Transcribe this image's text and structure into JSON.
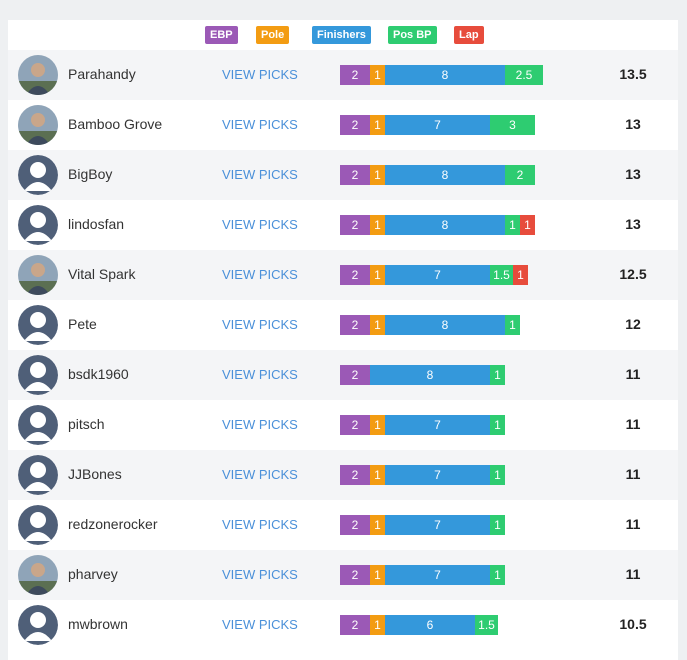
{
  "colors": {
    "ebp": "#9b59b6",
    "pole": "#f39c12",
    "finishers": "#3498db",
    "posbp": "#2ecc71",
    "lap": "#e74c3c",
    "link": "#4a90d9"
  },
  "legend": [
    {
      "key": "ebp",
      "label": "EBP"
    },
    {
      "key": "pole",
      "label": "Pole"
    },
    {
      "key": "finishers",
      "label": "Finishers"
    },
    {
      "key": "posbp",
      "label": "Pos BP"
    },
    {
      "key": "lap",
      "label": "Lap"
    }
  ],
  "view_label": "VIEW PICKS",
  "rows": [
    {
      "name": "Parahandy",
      "avatar": "photo-avatar",
      "ebp": "2",
      "pole": "1",
      "finishers": "8",
      "posbp": "2.5",
      "lap": null,
      "total": "13.5"
    },
    {
      "name": "Bamboo Grove",
      "avatar": "photo-avatar",
      "ebp": "2",
      "pole": "1",
      "finishers": "7",
      "posbp": "3",
      "lap": null,
      "total": "13"
    },
    {
      "name": "BigBoy",
      "avatar": "default-avatar",
      "ebp": "2",
      "pole": "1",
      "finishers": "8",
      "posbp": "2",
      "lap": null,
      "total": "13"
    },
    {
      "name": "lindosfan",
      "avatar": "default-avatar",
      "ebp": "2",
      "pole": "1",
      "finishers": "8",
      "posbp": "1",
      "lap": "1",
      "total": "13"
    },
    {
      "name": "Vital Spark",
      "avatar": "photo-avatar",
      "ebp": "2",
      "pole": "1",
      "finishers": "7",
      "posbp": "1.5",
      "lap": "1",
      "total": "12.5"
    },
    {
      "name": "Pete",
      "avatar": "default-avatar",
      "ebp": "2",
      "pole": "1",
      "finishers": "8",
      "posbp": "1",
      "lap": null,
      "total": "12"
    },
    {
      "name": "bsdk1960",
      "avatar": "default-avatar",
      "ebp": "2",
      "pole": null,
      "finishers": "8",
      "posbp": "1",
      "lap": null,
      "total": "11"
    },
    {
      "name": "pitsch",
      "avatar": "default-avatar",
      "ebp": "2",
      "pole": "1",
      "finishers": "7",
      "posbp": "1",
      "lap": null,
      "total": "11"
    },
    {
      "name": "JJBones",
      "avatar": "default-avatar",
      "ebp": "2",
      "pole": "1",
      "finishers": "7",
      "posbp": "1",
      "lap": null,
      "total": "11"
    },
    {
      "name": "redzonerocker",
      "avatar": "default-avatar",
      "ebp": "2",
      "pole": "1",
      "finishers": "7",
      "posbp": "1",
      "lap": null,
      "total": "11"
    },
    {
      "name": "pharvey",
      "avatar": "photo-avatar",
      "ebp": "2",
      "pole": "1",
      "finishers": "7",
      "posbp": "1",
      "lap": null,
      "total": "11"
    },
    {
      "name": "mwbrown",
      "avatar": "default-avatar",
      "ebp": "2",
      "pole": "1",
      "finishers": "6",
      "posbp": "1.5",
      "lap": null,
      "total": "10.5"
    }
  ]
}
